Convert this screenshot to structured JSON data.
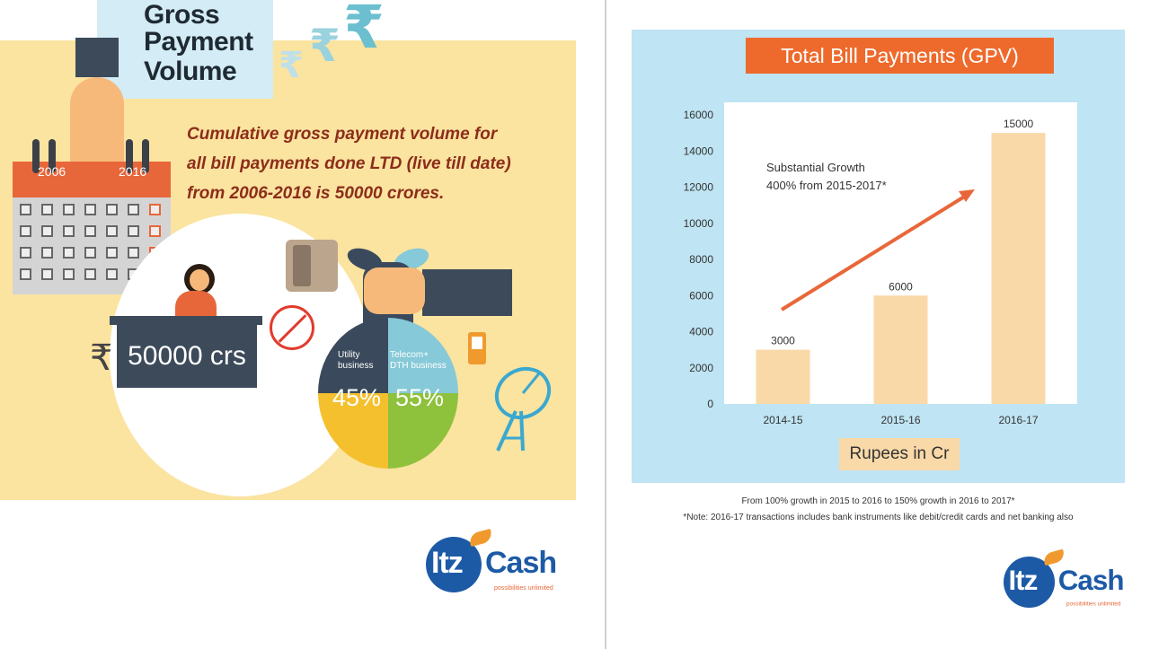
{
  "left_panel": {
    "title_lines": [
      "Gross",
      "Payment",
      "Volume"
    ],
    "description_lines": [
      "Cumulative gross payment volume for",
      "all bill payments done LTD (live till date)",
      "from 2006-2016 is 50000 crores."
    ],
    "calendar_years": [
      "2006",
      "2016"
    ],
    "desk_amount": "50000 crs",
    "rupee_symbol": "₹",
    "pie": {
      "segments": [
        {
          "label_lines": [
            "Utility",
            "business"
          ],
          "percent": "45%",
          "color": "#3a4a5c"
        },
        {
          "label_lines": [
            "Telecom+",
            "DTH business"
          ],
          "percent": "55%",
          "color": "#86c9d8"
        }
      ],
      "lower_colors": [
        "#f4c02e",
        "#8ec13c"
      ]
    },
    "logo": {
      "part1": "Itz",
      "part2": "Cash",
      "tagline": "possibilities unlimited"
    }
  },
  "right_panel": {
    "footnote_1": "From 100% growth in 2015 to 2016 to 150% growth in 2016 to 2017*",
    "footnote_2": "*Note: 2016-17 transactions includes bank instruments like debit/credit cards and net banking also",
    "logo": {
      "part1": "Itz",
      "part2": "Cash",
      "tagline": "possibilities unlimited"
    }
  },
  "chart_data": {
    "type": "bar",
    "title": "Total Bill Payments (GPV)",
    "xlabel": "Rupees in Cr",
    "ylabel": "",
    "categories": [
      "2014-15",
      "2015-16",
      "2016-17"
    ],
    "values": [
      3000,
      6000,
      15000
    ],
    "data_labels": [
      "3000",
      "6000",
      "15000"
    ],
    "ylim": [
      0,
      16000
    ],
    "yticks": [
      0,
      2000,
      4000,
      6000,
      8000,
      10000,
      12000,
      14000,
      16000
    ],
    "grid": false,
    "annotation_lines": [
      "Substantial Growth",
      "400% from 2015-2017*"
    ],
    "colors": {
      "bar": "#f9d9a8",
      "arrow": "#e8673a",
      "plot_bg": "#ffffff",
      "panel_bg": "#bfe4f3",
      "title_bg": "#ee6a2c"
    }
  }
}
